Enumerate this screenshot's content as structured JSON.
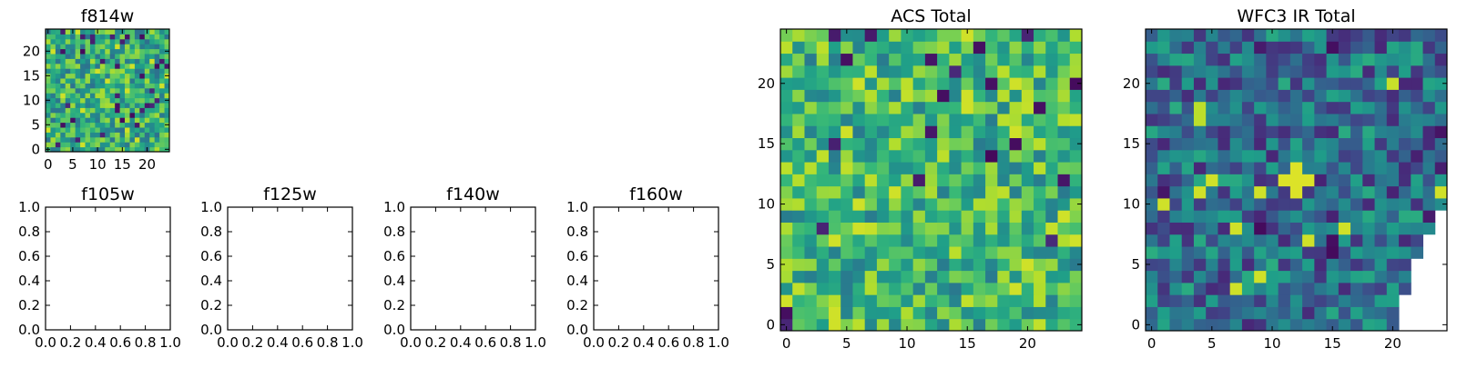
{
  "chart_data": [
    {
      "type": "heatmap",
      "title": "f814w",
      "xlim": [
        -0.5,
        24.5
      ],
      "ylim": [
        -0.5,
        24.5
      ],
      "xticks": [
        0,
        5,
        10,
        15,
        20
      ],
      "yticks": [
        0,
        5,
        10,
        15,
        20
      ],
      "grid_size": 25,
      "colormap": "viridis",
      "value_range": [
        0,
        1
      ],
      "seed": 814,
      "bias": 0.62
    },
    {
      "type": "empty",
      "title": "f105w",
      "xlim": [
        0,
        1
      ],
      "ylim": [
        0,
        1
      ],
      "xticks": [
        "0.0",
        "0.2",
        "0.4",
        "0.6",
        "0.8",
        "1.0"
      ],
      "yticks": [
        "0.0",
        "0.2",
        "0.4",
        "0.6",
        "0.8",
        "1.0"
      ]
    },
    {
      "type": "empty",
      "title": "f125w",
      "xlim": [
        0,
        1
      ],
      "ylim": [
        0,
        1
      ],
      "xticks": [
        "0.0",
        "0.2",
        "0.4",
        "0.6",
        "0.8",
        "1.0"
      ],
      "yticks": [
        "0.0",
        "0.2",
        "0.4",
        "0.6",
        "0.8",
        "1.0"
      ]
    },
    {
      "type": "empty",
      "title": "f140w",
      "xlim": [
        0,
        1
      ],
      "ylim": [
        0,
        1
      ],
      "xticks": [
        "0.0",
        "0.2",
        "0.4",
        "0.6",
        "0.8",
        "1.0"
      ],
      "yticks": [
        "0.0",
        "0.2",
        "0.4",
        "0.6",
        "0.8",
        "1.0"
      ]
    },
    {
      "type": "empty",
      "title": "f160w",
      "xlim": [
        0,
        1
      ],
      "ylim": [
        0,
        1
      ],
      "xticks": [
        "0.0",
        "0.2",
        "0.4",
        "0.6",
        "0.8",
        "1.0"
      ],
      "yticks": [
        "0.0",
        "0.2",
        "0.4",
        "0.6",
        "0.8",
        "1.0"
      ]
    },
    {
      "type": "heatmap",
      "title": "ACS Total",
      "xlim": [
        -0.5,
        24.5
      ],
      "ylim": [
        -0.5,
        24.5
      ],
      "xticks": [
        0,
        5,
        10,
        15,
        20
      ],
      "yticks": [
        0,
        5,
        10,
        15,
        20
      ],
      "grid_size": 25,
      "colormap": "viridis",
      "value_range": [
        0,
        1
      ],
      "seed": 2024,
      "bias": 0.66
    },
    {
      "type": "heatmap",
      "title": "WFC3 IR Total",
      "xlim": [
        -0.5,
        24.5
      ],
      "ylim": [
        -0.5,
        24.5
      ],
      "xticks": [
        0,
        5,
        10,
        15,
        20
      ],
      "yticks": [
        0,
        5,
        10,
        15,
        20
      ],
      "grid_size": 25,
      "colormap": "viridis",
      "value_range": [
        0,
        1
      ],
      "seed": 3160,
      "bias": 0.36,
      "bright_source": {
        "x": 12,
        "y": 12,
        "value": 0.95
      },
      "secondary_sources": [
        {
          "x": 4,
          "y": 17,
          "value": 0.9
        },
        {
          "x": 4,
          "y": 18,
          "value": 0.9
        },
        {
          "x": 20,
          "y": 20,
          "value": 0.92
        }
      ],
      "masked_region": "lower-right corner (no data)"
    }
  ]
}
